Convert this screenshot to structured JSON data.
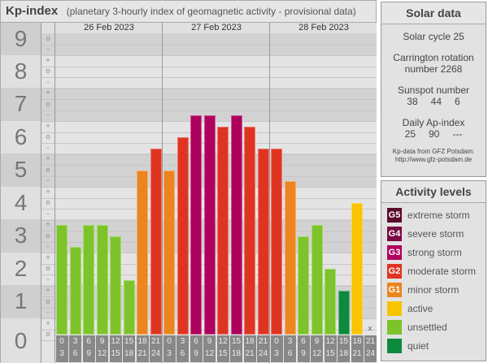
{
  "header": {
    "title": "Kp-index",
    "subtitle": "(planetary 3-hourly index of geomagnetic activity - provisional data)"
  },
  "chart_data": {
    "type": "bar",
    "title": "Kp-index",
    "days": [
      "26 Feb 2023",
      "27 Feb 2023",
      "28 Feb 2023"
    ],
    "y_ticks": [
      "0",
      "1",
      "2",
      "3",
      "4",
      "5",
      "6",
      "7",
      "8",
      "9"
    ],
    "ylim": [
      0,
      9
    ],
    "time_labels": [
      [
        "0",
        "3"
      ],
      [
        "3",
        "6"
      ],
      [
        "6",
        "9"
      ],
      [
        "9",
        "12"
      ],
      [
        "12",
        "15"
      ],
      [
        "15",
        "18"
      ],
      [
        "18",
        "21"
      ],
      [
        "21",
        "24"
      ]
    ],
    "values": [
      "3+",
      "3-",
      "3+",
      "3+",
      "3o",
      "2-",
      "5o",
      "6-",
      "5o",
      "6o",
      "7-",
      "7-",
      "6+",
      "7-",
      "6+",
      "6-",
      "6-",
      "5-",
      "3o",
      "3+",
      "2o",
      "1+",
      "4o",
      null
    ],
    "levels": [
      "unsettled",
      "unsettled",
      "unsettled",
      "unsettled",
      "unsettled",
      "unsettled",
      "minor storm",
      "moderate storm",
      "minor storm",
      "moderate storm",
      "strong storm",
      "strong storm",
      "moderate storm",
      "strong storm",
      "moderate storm",
      "moderate storm",
      "moderate storm",
      "minor storm",
      "unsettled",
      "unsettled",
      "unsettled",
      "quiet",
      "active",
      null
    ],
    "missing_marker": "x"
  },
  "solar": {
    "title": "Solar data",
    "cycle": "Solar cycle 25",
    "carrington1": "Carrington rotation",
    "carrington2": "number 2268",
    "sunspot_label": "Sunspot number",
    "sunspot": [
      "38",
      "44",
      "6"
    ],
    "ap_label": "Daily Ap-index",
    "ap": [
      "25",
      "90",
      "---"
    ],
    "credit1": "Kp-data from  GFZ Potsdam:",
    "credit2": "http://www.gfz-potsdam.de"
  },
  "legend": {
    "title": "Activity levels",
    "items": [
      {
        "code": "G5",
        "label": "extreme storm",
        "color": "#5a0a2a"
      },
      {
        "code": "G4",
        "label": "severe storm",
        "color": "#7a0a45"
      },
      {
        "code": "G3",
        "label": "strong storm",
        "color": "#b0005e"
      },
      {
        "code": "G2",
        "label": "moderate storm",
        "color": "#e03422"
      },
      {
        "code": "G1",
        "label": "minor storm",
        "color": "#ec8420"
      },
      {
        "code": "",
        "label": "active",
        "color": "#f8c400"
      },
      {
        "code": "",
        "label": "unsettled",
        "color": "#7cc42a"
      },
      {
        "code": "",
        "label": "quiet",
        "color": "#0e8a3e"
      }
    ]
  }
}
